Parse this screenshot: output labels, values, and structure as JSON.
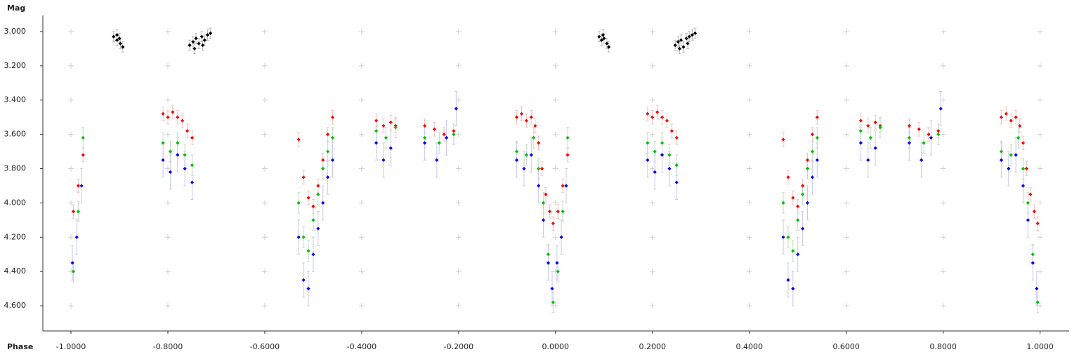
{
  "chart_data": {
    "type": "scatter",
    "ylabel": "Mag",
    "xlabel": "Phase",
    "xlim": [
      -1.058,
      1.06
    ],
    "ylim": [
      2.906,
      4.747
    ],
    "y_inverted": true,
    "grid": true,
    "xticks": [
      {
        "value": -1.0,
        "label": "-1.0000"
      },
      {
        "value": -0.8,
        "label": "-0.8000"
      },
      {
        "value": -0.6,
        "label": "-0.6000"
      },
      {
        "value": -0.4,
        "label": "-0.4000"
      },
      {
        "value": -0.2,
        "label": "-0.2000"
      },
      {
        "value": 0,
        "label": "0.0000"
      },
      {
        "value": 0.2,
        "label": "0.2000"
      },
      {
        "value": 0.4,
        "label": "0.4000"
      },
      {
        "value": 0.6,
        "label": "0.6000"
      },
      {
        "value": 0.8,
        "label": "0.8000"
      },
      {
        "value": 1.0,
        "label": "1.0000"
      }
    ],
    "yticks": [
      {
        "value": 3.0,
        "label": "3.000"
      },
      {
        "value": 3.2,
        "label": "3.200"
      },
      {
        "value": 3.4,
        "label": "3.400"
      },
      {
        "value": 3.6,
        "label": "3.600"
      },
      {
        "value": 3.8,
        "label": "3.800"
      },
      {
        "value": 4.0,
        "label": "4.000"
      },
      {
        "value": 4.2,
        "label": "4.200"
      },
      {
        "value": 4.4,
        "label": "4.400"
      },
      {
        "value": 4.6,
        "label": "4.600"
      }
    ],
    "series": [
      {
        "color": "#000000",
        "error_color": "#bbbbbb",
        "error": 0.03,
        "x": [
          -0.912,
          -0.905,
          -0.898,
          -0.893,
          -0.905,
          -0.9,
          -0.755,
          -0.748,
          -0.742,
          -0.736,
          -0.73,
          -0.724,
          -0.718,
          -0.712,
          -0.745,
          -0.728,
          0.09,
          0.095,
          0.1,
          0.106,
          0.11,
          0.098,
          0.247,
          0.253,
          0.259,
          0.264,
          0.27,
          0.276,
          0.282,
          0.288,
          0.256,
          0.273
        ],
        "values": [
          3.03,
          3.05,
          3.07,
          3.09,
          3.02,
          3.04,
          3.08,
          3.06,
          3.04,
          3.07,
          3.03,
          3.05,
          3.02,
          3.01,
          3.1,
          3.08,
          3.03,
          3.05,
          3.04,
          3.07,
          3.09,
          3.02,
          3.08,
          3.06,
          3.05,
          3.09,
          3.04,
          3.03,
          3.02,
          3.01,
          3.1,
          3.07
        ]
      },
      {
        "color": "#ff0000",
        "error_color": "#f4c4c4",
        "error": 0.04,
        "x": [
          -0.995,
          -0.985,
          -0.975,
          -0.81,
          -0.8,
          -0.79,
          -0.78,
          -0.77,
          -0.76,
          -0.75,
          -0.53,
          -0.52,
          -0.51,
          -0.5,
          -0.49,
          -0.48,
          -0.47,
          -0.46,
          -0.37,
          -0.355,
          -0.34,
          -0.33,
          -0.27,
          -0.25,
          -0.23,
          -0.21,
          -0.08,
          -0.07,
          -0.06,
          -0.05,
          -0.042,
          -0.035,
          -0.028,
          -0.02,
          -0.012,
          -0.005,
          0.005,
          0.015,
          0.025,
          0.19,
          0.2,
          0.21,
          0.22,
          0.23,
          0.24,
          0.25,
          0.47,
          0.48,
          0.49,
          0.5,
          0.51,
          0.52,
          0.53,
          0.54,
          0.63,
          0.645,
          0.66,
          0.67,
          0.73,
          0.75,
          0.77,
          0.79,
          0.92,
          0.93,
          0.94,
          0.95,
          0.958,
          0.965,
          0.972,
          0.98,
          0.988,
          0.995
        ],
        "values": [
          4.05,
          3.9,
          3.72,
          3.48,
          3.5,
          3.47,
          3.5,
          3.52,
          3.58,
          3.62,
          3.63,
          3.85,
          3.97,
          4.02,
          3.9,
          3.75,
          3.6,
          3.5,
          3.52,
          3.55,
          3.53,
          3.55,
          3.55,
          3.57,
          3.6,
          3.58,
          3.5,
          3.48,
          3.52,
          3.5,
          3.55,
          3.65,
          3.8,
          3.95,
          4.05,
          4.12,
          4.05,
          3.9,
          3.72,
          3.48,
          3.5,
          3.47,
          3.5,
          3.52,
          3.58,
          3.62,
          3.63,
          3.85,
          3.97,
          4.02,
          3.9,
          3.75,
          3.6,
          3.5,
          3.52,
          3.55,
          3.53,
          3.55,
          3.55,
          3.57,
          3.6,
          3.58,
          3.5,
          3.48,
          3.52,
          3.5,
          3.55,
          3.65,
          3.8,
          3.95,
          4.05,
          4.12
        ]
      },
      {
        "color": "#00c000",
        "error_color": "#c4dcc4",
        "error": 0.06,
        "x": [
          -0.995,
          -0.985,
          -0.975,
          -0.81,
          -0.795,
          -0.78,
          -0.765,
          -0.75,
          -0.53,
          -0.52,
          -0.51,
          -0.5,
          -0.49,
          -0.48,
          -0.47,
          -0.46,
          -0.37,
          -0.35,
          -0.33,
          -0.27,
          -0.24,
          -0.21,
          -0.08,
          -0.06,
          -0.045,
          -0.035,
          -0.025,
          -0.015,
          -0.005,
          0.005,
          0.015,
          0.025,
          0.19,
          0.205,
          0.22,
          0.235,
          0.25,
          0.47,
          0.48,
          0.49,
          0.5,
          0.51,
          0.52,
          0.53,
          0.54,
          0.63,
          0.65,
          0.67,
          0.73,
          0.76,
          0.79,
          0.92,
          0.94,
          0.955,
          0.965,
          0.975,
          0.985,
          0.995
        ],
        "values": [
          4.4,
          4.05,
          3.62,
          3.65,
          3.7,
          3.65,
          3.72,
          3.78,
          4.0,
          4.2,
          4.28,
          4.1,
          3.95,
          3.8,
          3.7,
          3.62,
          3.58,
          3.62,
          3.56,
          3.62,
          3.65,
          3.6,
          3.7,
          3.72,
          3.62,
          3.8,
          4.0,
          4.3,
          4.58,
          4.4,
          4.05,
          3.62,
          3.65,
          3.7,
          3.65,
          3.72,
          3.78,
          4.0,
          4.2,
          4.28,
          4.1,
          3.95,
          3.8,
          3.7,
          3.62,
          3.58,
          3.62,
          3.56,
          3.62,
          3.65,
          3.6,
          3.7,
          3.72,
          3.62,
          3.8,
          4.0,
          4.3,
          4.58
        ]
      },
      {
        "color": "#0000ff",
        "error_color": "#c8c8f0",
        "error": 0.1,
        "x": [
          -0.997,
          -0.988,
          -0.978,
          -0.81,
          -0.795,
          -0.78,
          -0.765,
          -0.75,
          -0.53,
          -0.52,
          -0.51,
          -0.5,
          -0.49,
          -0.48,
          -0.47,
          -0.46,
          -0.37,
          -0.355,
          -0.34,
          -0.27,
          -0.245,
          -0.225,
          -0.205,
          -0.08,
          -0.065,
          -0.05,
          -0.035,
          -0.025,
          -0.015,
          -0.007,
          0.003,
          0.012,
          0.022,
          0.19,
          0.205,
          0.22,
          0.235,
          0.25,
          0.47,
          0.48,
          0.49,
          0.5,
          0.51,
          0.52,
          0.53,
          0.54,
          0.63,
          0.645,
          0.66,
          0.73,
          0.755,
          0.775,
          0.795,
          0.92,
          0.935,
          0.95,
          0.965,
          0.975,
          0.985,
          0.993
        ],
        "values": [
          4.35,
          4.2,
          3.9,
          3.75,
          3.82,
          3.72,
          3.8,
          3.88,
          4.2,
          4.45,
          4.5,
          4.3,
          4.15,
          4.0,
          3.85,
          3.75,
          3.65,
          3.75,
          3.68,
          3.65,
          3.75,
          3.62,
          3.45,
          3.75,
          3.8,
          3.72,
          3.9,
          4.1,
          4.35,
          4.5,
          4.35,
          4.2,
          3.9,
          3.75,
          3.82,
          3.72,
          3.8,
          3.88,
          4.2,
          4.45,
          4.5,
          4.3,
          4.15,
          4.0,
          3.85,
          3.75,
          3.65,
          3.75,
          3.68,
          3.65,
          3.75,
          3.62,
          3.45,
          3.75,
          3.8,
          3.72,
          3.9,
          4.1,
          4.35,
          4.5
        ]
      }
    ]
  }
}
